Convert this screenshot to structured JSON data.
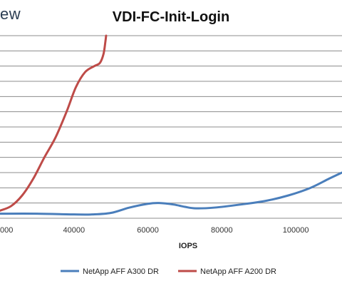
{
  "brand_fragment": "ew",
  "chart_data": {
    "type": "line",
    "title": "VDI-FC-Init-Login",
    "xlabel": "IOPS",
    "ylabel": "",
    "x_ticks": [
      40000,
      60000,
      80000,
      100000
    ],
    "x_tick_labels": [
      "40000",
      "60000",
      "80000",
      "100000"
    ],
    "partial_x_tick_label": "000",
    "xlim": [
      20000,
      112500
    ],
    "ylim": [
      0,
      12
    ],
    "grid": true,
    "legend_position": "bottom",
    "series": [
      {
        "name": "NetApp AFF A300 DR",
        "color": "#4a7ebb",
        "points": [
          [
            20000,
            0.3
          ],
          [
            30000,
            0.3
          ],
          [
            40000,
            0.25
          ],
          [
            45000,
            0.25
          ],
          [
            50000,
            0.35
          ],
          [
            55000,
            0.7
          ],
          [
            60000,
            0.95
          ],
          [
            63000,
            1.0
          ],
          [
            67000,
            0.9
          ],
          [
            70000,
            0.75
          ],
          [
            73000,
            0.65
          ],
          [
            78000,
            0.7
          ],
          [
            85000,
            0.9
          ],
          [
            92000,
            1.15
          ],
          [
            98000,
            1.5
          ],
          [
            104000,
            2.0
          ],
          [
            109000,
            2.6
          ],
          [
            112500,
            3.0
          ]
        ]
      },
      {
        "name": "NetApp AFF A200 DR",
        "color": "#be4b48",
        "points": [
          [
            20000,
            0.5
          ],
          [
            23000,
            0.8
          ],
          [
            26000,
            1.5
          ],
          [
            29000,
            2.6
          ],
          [
            32000,
            4.0
          ],
          [
            35000,
            5.3
          ],
          [
            38000,
            7.0
          ],
          [
            40500,
            8.6
          ],
          [
            43000,
            9.6
          ],
          [
            45500,
            10.0
          ],
          [
            47000,
            10.2
          ],
          [
            48000,
            10.8
          ],
          [
            48500,
            11.6
          ],
          [
            48700,
            12.0
          ]
        ]
      }
    ]
  }
}
